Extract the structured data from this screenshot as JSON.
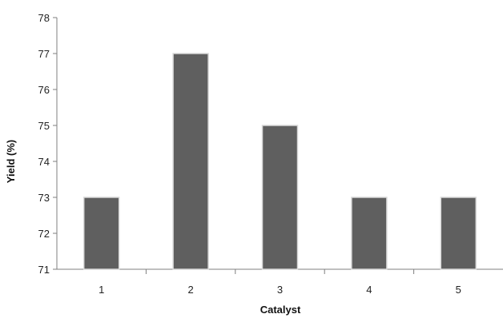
{
  "chart_data": {
    "type": "bar",
    "title": "",
    "xlabel": "Catalyst",
    "ylabel": "Yield (%)",
    "categories": [
      "1",
      "2",
      "3",
      "4",
      "5"
    ],
    "values": [
      73,
      77,
      75,
      73,
      73
    ],
    "ylim": [
      71,
      78
    ],
    "yticks": [
      71,
      72,
      73,
      74,
      75,
      76,
      77,
      78
    ],
    "grid": false,
    "legend": "none",
    "colors": {
      "bar": "#5f5f5f",
      "bar_edge": "#d9d9d9",
      "axis": "#7f7f7f"
    }
  }
}
